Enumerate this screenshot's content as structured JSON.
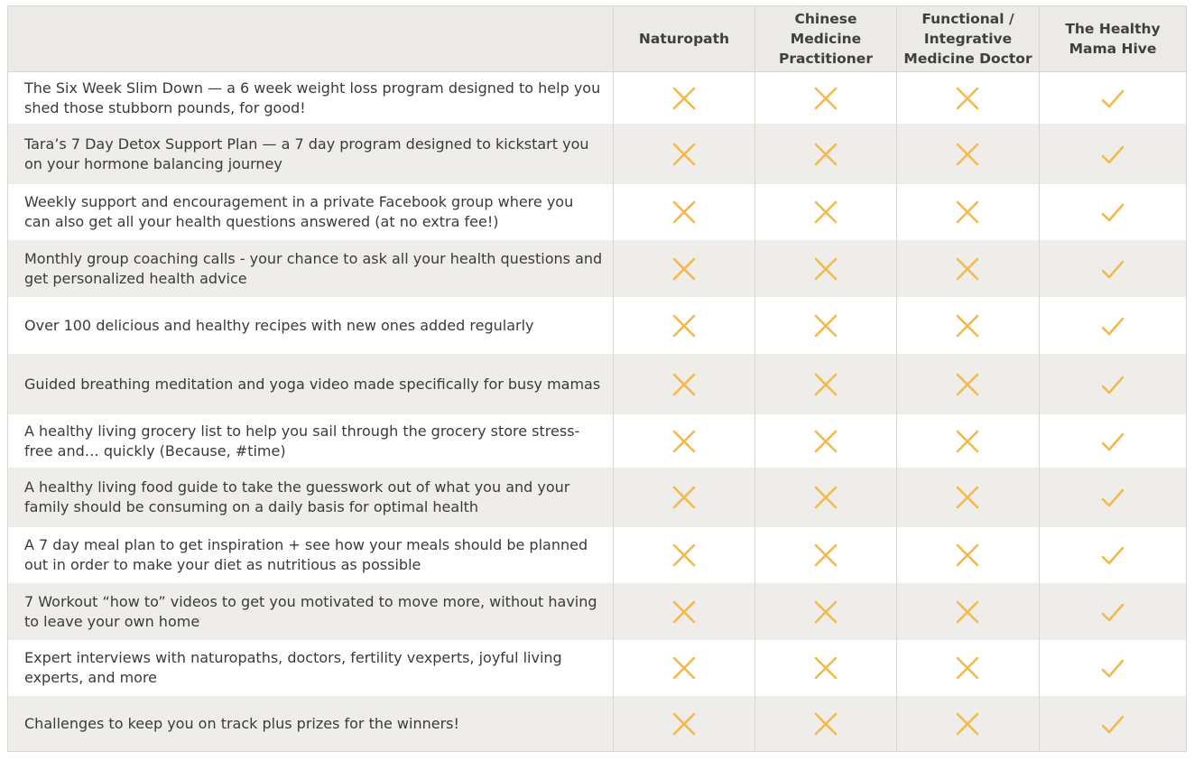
{
  "columns": [
    "",
    "Naturopath",
    "Chinese\nMedicine\nPractitioner",
    "Functional /\nIntegrative\nMedicine Doctor",
    "The Healthy\nMama Hive"
  ],
  "rows": [
    {
      "feature": "The Six Week Slim Down — a 6 week weight loss program designed to help you shed those stubborn pounds, for good!",
      "marks": [
        "x",
        "x",
        "x",
        "check"
      ]
    },
    {
      "feature": "Tara’s 7 Day Detox Support Plan — a 7 day program designed to kickstart you on your hormone balancing journey",
      "marks": [
        "x",
        "x",
        "x",
        "check"
      ]
    },
    {
      "feature": "Weekly support and encouragement in a private Facebook group where you can also get all your health questions answered (at no extra fee!)",
      "marks": [
        "x",
        "x",
        "x",
        "check"
      ]
    },
    {
      "feature": "Monthly group coaching calls - your chance to ask all your health questions and get personalized health advice",
      "marks": [
        "x",
        "x",
        "x",
        "check"
      ]
    },
    {
      "feature": "Over 100 delicious and healthy recipes with new ones added regularly",
      "marks": [
        "x",
        "x",
        "x",
        "check"
      ]
    },
    {
      "feature": "Guided breathing meditation and yoga video made specifically for busy mamas",
      "marks": [
        "x",
        "x",
        "x",
        "check"
      ]
    },
    {
      "feature": "A healthy living grocery list  to help you sail through the grocery store stress-free and… quickly (Because, #time)",
      "marks": [
        "x",
        "x",
        "x",
        "check"
      ]
    },
    {
      "feature": "A healthy living food guide to take the guesswork out of what you and your family should be consuming on a daily basis for optimal health",
      "marks": [
        "x",
        "x",
        "x",
        "check"
      ]
    },
    {
      "feature": "A 7 day meal plan to get inspiration + see how your meals should be planned out in order to make your diet as nutritious as possible",
      "marks": [
        "x",
        "x",
        "x",
        "check"
      ]
    },
    {
      "feature": "7 Workout “how to” videos to get you motivated to move more, without having to leave your own home",
      "marks": [
        "x",
        "x",
        "x",
        "check"
      ]
    },
    {
      "feature": "Expert interviews with naturopaths, doctors, fertility vexperts, joyful living experts, and more",
      "marks": [
        "x",
        "x",
        "x",
        "check"
      ]
    },
    {
      "feature": "Challenges to keep you on track plus prizes for the winners!",
      "marks": [
        "x",
        "x",
        "x",
        "check"
      ]
    }
  ],
  "colors": {
    "accent": "#f2b94c",
    "header_bg": "#eceae6",
    "row_shade": "#efedea",
    "border": "#d9d6d0",
    "text": "#3a3a3a"
  },
  "icons": {
    "x": "x-icon",
    "check": "check-icon"
  }
}
